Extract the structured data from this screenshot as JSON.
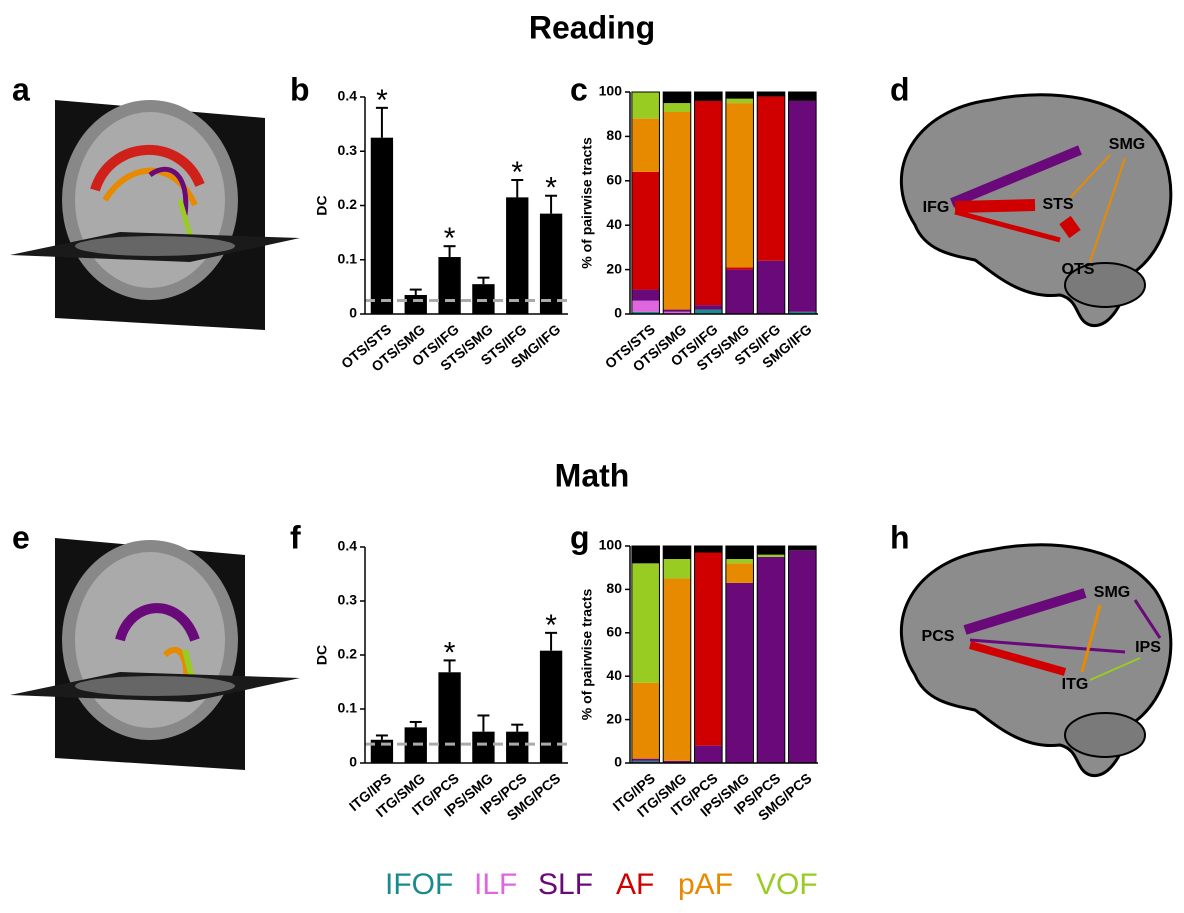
{
  "titles": [
    "Reading",
    "Math"
  ],
  "panels": [
    "a",
    "b",
    "c",
    "d",
    "e",
    "f",
    "g",
    "h"
  ],
  "chart_data": [
    {
      "type": "bar",
      "ylabel": "DC",
      "categories": [
        "OTS/STS",
        "OTS/SMG",
        "OTS/IFG",
        "STS/SMG",
        "STS/IFG",
        "SMG/IFG"
      ],
      "values": [
        0.325,
        0.035,
        0.105,
        0.055,
        0.215,
        0.185
      ],
      "errors": [
        0.055,
        0.01,
        0.02,
        0.012,
        0.032,
        0.033
      ],
      "markers": [
        "*",
        null,
        "*",
        null,
        "*",
        "*"
      ],
      "baseline": 0.025,
      "color": "#000000",
      "ylim": [
        0,
        0.4
      ],
      "yticks": [
        0,
        0.1,
        0.2,
        0.3,
        0.4
      ]
    },
    {
      "type": "stacked_bar",
      "ylabel": "% of pairwise tracts",
      "categories": [
        "OTS/STS",
        "OTS/SMG",
        "OTS/IFG",
        "STS/SMG",
        "STS/IFG",
        "SMG/IFG"
      ],
      "series": [
        {
          "name": "IFOF",
          "color": "#1a8a8a",
          "values": [
            1,
            0,
            2,
            0,
            0,
            1
          ]
        },
        {
          "name": "ILF",
          "color": "#e066e0",
          "values": [
            5,
            1,
            0,
            0,
            0,
            0
          ]
        },
        {
          "name": "SLF",
          "color": "#6a0a7a",
          "values": [
            5,
            1,
            2,
            20,
            24,
            95
          ]
        },
        {
          "name": "AF",
          "color": "#d00000",
          "values": [
            53,
            0,
            92,
            1,
            74,
            0
          ]
        },
        {
          "name": "pAF",
          "color": "#e88a00",
          "values": [
            24,
            89,
            0,
            74,
            0,
            0
          ]
        },
        {
          "name": "VOF",
          "color": "#99cc22",
          "values": [
            12,
            4,
            0,
            2,
            0,
            0
          ]
        },
        {
          "color": "#000000",
          "values": [
            0,
            5,
            4,
            3,
            2,
            4
          ]
        }
      ],
      "ylim": [
        0,
        100
      ],
      "yticks": [
        0,
        20,
        40,
        60,
        80,
        100
      ]
    },
    {
      "type": "bar",
      "ylabel": "DC",
      "categories": [
        "ITG/IPS",
        "ITG/SMG",
        "ITG/PCS",
        "IPS/SMG",
        "IPS/PCS",
        "SMG/PCS"
      ],
      "values": [
        0.043,
        0.066,
        0.168,
        0.058,
        0.058,
        0.208
      ],
      "errors": [
        0.008,
        0.01,
        0.022,
        0.03,
        0.013,
        0.033
      ],
      "markers": [
        null,
        null,
        "*",
        null,
        null,
        "*"
      ],
      "baseline": 0.035,
      "color": "#000000",
      "ylim": [
        0,
        0.4
      ],
      "yticks": [
        0,
        0.1,
        0.2,
        0.3,
        0.4
      ]
    },
    {
      "type": "stacked_bar",
      "ylabel": "% of pairwise tracts",
      "categories": [
        "ITG/IPS",
        "ITG/SMG",
        "ITG/PCS",
        "IPS/SMG",
        "IPS/PCS",
        "SMG/PCS"
      ],
      "series": [
        {
          "name": "IFOF",
          "color": "#1a8a8a",
          "values": [
            1,
            0,
            0,
            0,
            0,
            0
          ]
        },
        {
          "name": "ILF",
          "color": "#e066e0",
          "values": [
            0,
            0,
            0,
            0,
            0,
            0
          ]
        },
        {
          "name": "SLF",
          "color": "#6a0a7a",
          "values": [
            1,
            1,
            8,
            83,
            95,
            98
          ]
        },
        {
          "name": "AF",
          "color": "#d00000",
          "values": [
            0,
            0,
            89,
            0,
            0,
            0
          ]
        },
        {
          "name": "pAF",
          "color": "#e88a00",
          "values": [
            35,
            84,
            0,
            9,
            0,
            0
          ]
        },
        {
          "name": "VOF",
          "color": "#99cc22",
          "values": [
            55,
            9,
            0,
            2,
            1,
            0
          ]
        },
        {
          "color": "#000000",
          "values": [
            8,
            6,
            3,
            6,
            4,
            2
          ]
        }
      ],
      "ylim": [
        0,
        100
      ],
      "yticks": [
        0,
        20,
        40,
        60,
        80,
        100
      ]
    }
  ],
  "diagrams": [
    {
      "labels": [
        "SMG",
        "STS",
        "IFG",
        "OTS"
      ]
    },
    {
      "labels": [
        "SMG",
        "IPS",
        "PCS",
        "ITG"
      ]
    }
  ]
}
